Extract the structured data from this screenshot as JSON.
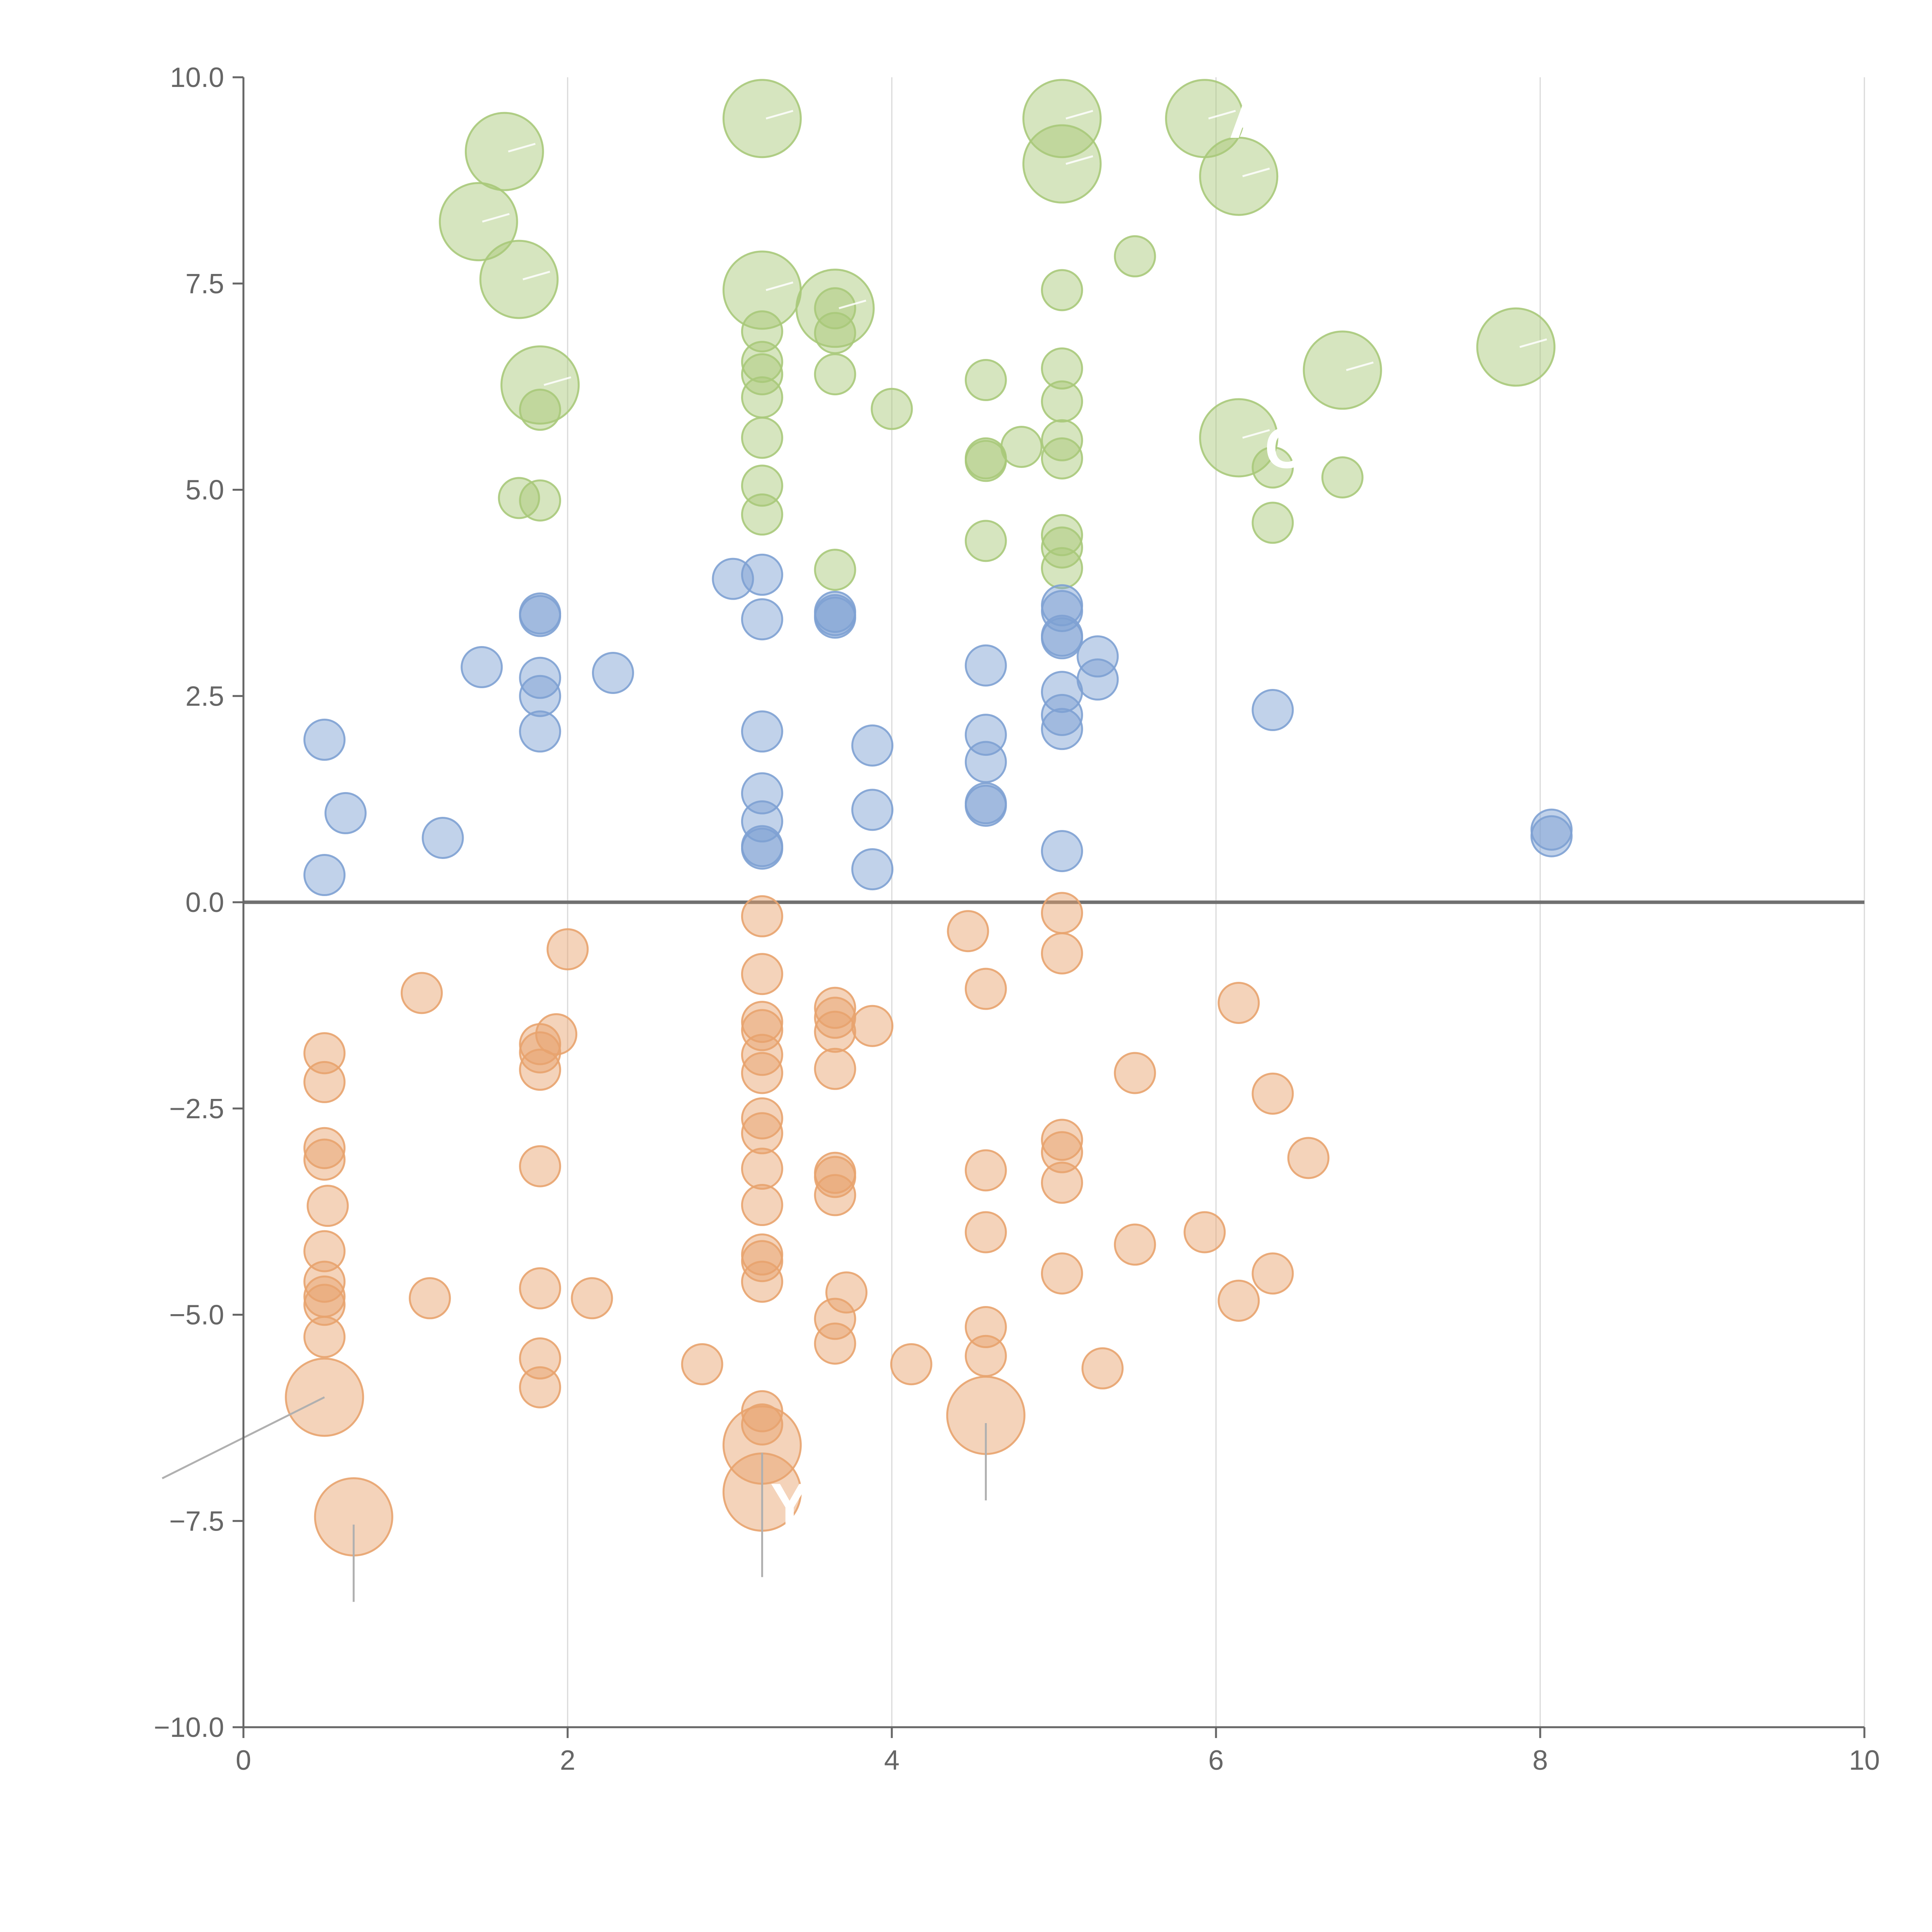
{
  "chart_data": {
    "type": "scatter",
    "title": "",
    "xlabel": "",
    "ylabel": "",
    "xlim": [
      0,
      10
    ],
    "ylim": [
      -10,
      10
    ],
    "x_ticks": [
      "0",
      "2",
      "4",
      "6",
      "8",
      "10"
    ],
    "x_tick_values": [
      0,
      2,
      4,
      6,
      8,
      10
    ],
    "y_ticks": [
      "10.0",
      "7.5",
      "5.0",
      "2.5",
      "0.0",
      "−2.5",
      "−5.0",
      "−7.5",
      "−10.0"
    ],
    "y_tick_values": [
      10,
      7.5,
      5,
      2.5,
      0,
      -2.5,
      -5,
      -7.5,
      -10
    ],
    "grid": "vertical",
    "reference_line_y": 0,
    "series": [
      {
        "name": "green",
        "color": "#a9c97a",
        "points": [
          {
            "x": 1.45,
            "y": 8.25,
            "size": "large"
          },
          {
            "x": 1.61,
            "y": 9.1,
            "size": "large"
          },
          {
            "x": 1.7,
            "y": 7.55,
            "size": "large"
          },
          {
            "x": 1.83,
            "y": 6.27,
            "size": "large"
          },
          {
            "x": 3.2,
            "y": 9.5,
            "size": "large"
          },
          {
            "x": 3.2,
            "y": 7.42,
            "size": "large"
          },
          {
            "x": 3.65,
            "y": 7.2,
            "size": "large"
          },
          {
            "x": 5.05,
            "y": 9.5,
            "size": "large"
          },
          {
            "x": 5.05,
            "y": 8.95,
            "size": "large"
          },
          {
            "x": 5.93,
            "y": 9.5,
            "size": "large"
          },
          {
            "x": 6.14,
            "y": 8.8,
            "size": "large"
          },
          {
            "x": 6.14,
            "y": 5.63,
            "size": "large"
          },
          {
            "x": 6.78,
            "y": 6.45,
            "size": "large"
          },
          {
            "x": 7.85,
            "y": 6.73,
            "size": "large"
          },
          {
            "x": 1.7,
            "y": 4.9,
            "size": "small"
          },
          {
            "x": 1.83,
            "y": 4.87,
            "size": "small"
          },
          {
            "x": 1.83,
            "y": 5.97,
            "size": "small"
          },
          {
            "x": 3.2,
            "y": 6.92,
            "size": "small"
          },
          {
            "x": 3.2,
            "y": 6.55,
            "size": "small"
          },
          {
            "x": 3.2,
            "y": 6.4,
            "size": "small"
          },
          {
            "x": 3.2,
            "y": 6.12,
            "size": "small"
          },
          {
            "x": 3.2,
            "y": 5.63,
            "size": "small"
          },
          {
            "x": 3.2,
            "y": 5.05,
            "size": "small"
          },
          {
            "x": 3.2,
            "y": 4.7,
            "size": "small"
          },
          {
            "x": 3.65,
            "y": 7.2,
            "size": "small"
          },
          {
            "x": 3.65,
            "y": 6.9,
            "size": "small"
          },
          {
            "x": 3.65,
            "y": 6.4,
            "size": "small"
          },
          {
            "x": 3.65,
            "y": 4.03,
            "size": "small"
          },
          {
            "x": 4.0,
            "y": 5.98,
            "size": "small"
          },
          {
            "x": 4.58,
            "y": 6.33,
            "size": "small"
          },
          {
            "x": 4.58,
            "y": 5.38,
            "size": "small"
          },
          {
            "x": 4.58,
            "y": 5.35,
            "size": "small"
          },
          {
            "x": 4.58,
            "y": 4.38,
            "size": "small"
          },
          {
            "x": 4.8,
            "y": 5.52,
            "size": "small"
          },
          {
            "x": 5.05,
            "y": 7.42,
            "size": "small"
          },
          {
            "x": 5.05,
            "y": 6.47,
            "size": "small"
          },
          {
            "x": 5.05,
            "y": 6.07,
            "size": "small"
          },
          {
            "x": 5.05,
            "y": 5.6,
            "size": "small"
          },
          {
            "x": 5.05,
            "y": 5.38,
            "size": "small"
          },
          {
            "x": 5.05,
            "y": 4.45,
            "size": "small"
          },
          {
            "x": 5.05,
            "y": 4.3,
            "size": "small"
          },
          {
            "x": 5.05,
            "y": 4.05,
            "size": "small"
          },
          {
            "x": 5.5,
            "y": 7.83,
            "size": "small"
          },
          {
            "x": 6.35,
            "y": 5.27,
            "size": "small"
          },
          {
            "x": 6.35,
            "y": 4.6,
            "size": "small"
          },
          {
            "x": 6.78,
            "y": 5.15,
            "size": "small"
          }
        ]
      },
      {
        "name": "blue",
        "color": "#7ea1d3",
        "points": [
          {
            "x": 0.5,
            "y": 1.97,
            "size": "small"
          },
          {
            "x": 0.5,
            "y": 0.33,
            "size": "small"
          },
          {
            "x": 0.63,
            "y": 1.08,
            "size": "small"
          },
          {
            "x": 1.23,
            "y": 0.78,
            "size": "small"
          },
          {
            "x": 1.47,
            "y": 2.85,
            "size": "small"
          },
          {
            "x": 1.83,
            "y": 3.5,
            "size": "small"
          },
          {
            "x": 1.83,
            "y": 3.47,
            "size": "small"
          },
          {
            "x": 1.83,
            "y": 2.72,
            "size": "small"
          },
          {
            "x": 1.83,
            "y": 2.5,
            "size": "small"
          },
          {
            "x": 1.83,
            "y": 2.07,
            "size": "small"
          },
          {
            "x": 2.28,
            "y": 2.78,
            "size": "small"
          },
          {
            "x": 3.02,
            "y": 3.92,
            "size": "small"
          },
          {
            "x": 3.2,
            "y": 3.97,
            "size": "small"
          },
          {
            "x": 3.2,
            "y": 3.43,
            "size": "small"
          },
          {
            "x": 3.2,
            "y": 2.07,
            "size": "small"
          },
          {
            "x": 3.2,
            "y": 1.32,
            "size": "small"
          },
          {
            "x": 3.2,
            "y": 0.98,
            "size": "small"
          },
          {
            "x": 3.2,
            "y": 0.68,
            "size": "small"
          },
          {
            "x": 3.2,
            "y": 0.65,
            "size": "small"
          },
          {
            "x": 3.65,
            "y": 3.52,
            "size": "small"
          },
          {
            "x": 3.65,
            "y": 3.48,
            "size": "small"
          },
          {
            "x": 3.65,
            "y": 3.45,
            "size": "small"
          },
          {
            "x": 3.88,
            "y": 1.9,
            "size": "small"
          },
          {
            "x": 3.88,
            "y": 1.12,
            "size": "small"
          },
          {
            "x": 3.88,
            "y": 0.4,
            "size": "small"
          },
          {
            "x": 4.58,
            "y": 2.87,
            "size": "small"
          },
          {
            "x": 4.58,
            "y": 2.03,
            "size": "small"
          },
          {
            "x": 4.58,
            "y": 1.7,
            "size": "small"
          },
          {
            "x": 4.58,
            "y": 1.2,
            "size": "small"
          },
          {
            "x": 4.58,
            "y": 1.17,
            "size": "small"
          },
          {
            "x": 5.05,
            "y": 3.6,
            "size": "small"
          },
          {
            "x": 5.05,
            "y": 3.53,
            "size": "small"
          },
          {
            "x": 5.05,
            "y": 3.23,
            "size": "small"
          },
          {
            "x": 5.05,
            "y": 3.2,
            "size": "small"
          },
          {
            "x": 5.05,
            "y": 2.55,
            "size": "small"
          },
          {
            "x": 5.05,
            "y": 2.27,
            "size": "small"
          },
          {
            "x": 5.05,
            "y": 2.1,
            "size": "small"
          },
          {
            "x": 5.05,
            "y": 0.62,
            "size": "small"
          },
          {
            "x": 5.27,
            "y": 2.98,
            "size": "small"
          },
          {
            "x": 5.27,
            "y": 2.7,
            "size": "small"
          },
          {
            "x": 6.35,
            "y": 2.33,
            "size": "small"
          },
          {
            "x": 8.07,
            "y": 0.88,
            "size": "small"
          },
          {
            "x": 8.07,
            "y": 0.8,
            "size": "small"
          }
        ]
      },
      {
        "name": "orange",
        "color": "#e8a36e",
        "points": [
          {
            "x": 0.5,
            "y": -6.0,
            "size": "large"
          },
          {
            "x": 0.68,
            "y": -7.45,
            "size": "large"
          },
          {
            "x": 3.2,
            "y": -6.58,
            "size": "large"
          },
          {
            "x": 3.2,
            "y": -7.15,
            "size": "large"
          },
          {
            "x": 4.58,
            "y": -6.22,
            "size": "large"
          },
          {
            "x": 0.5,
            "y": -1.83,
            "size": "small"
          },
          {
            "x": 0.5,
            "y": -2.18,
            "size": "small"
          },
          {
            "x": 0.5,
            "y": -2.98,
            "size": "small"
          },
          {
            "x": 0.5,
            "y": -3.12,
            "size": "small"
          },
          {
            "x": 0.52,
            "y": -3.68,
            "size": "small"
          },
          {
            "x": 0.5,
            "y": -4.23,
            "size": "small"
          },
          {
            "x": 0.5,
            "y": -4.6,
            "size": "small"
          },
          {
            "x": 0.5,
            "y": -4.78,
            "size": "small"
          },
          {
            "x": 0.5,
            "y": -4.88,
            "size": "small"
          },
          {
            "x": 0.5,
            "y": -5.27,
            "size": "small"
          },
          {
            "x": 1.1,
            "y": -1.1,
            "size": "small"
          },
          {
            "x": 1.15,
            "y": -4.8,
            "size": "small"
          },
          {
            "x": 1.83,
            "y": -1.72,
            "size": "small"
          },
          {
            "x": 1.83,
            "y": -1.82,
            "size": "small"
          },
          {
            "x": 1.83,
            "y": -2.03,
            "size": "small"
          },
          {
            "x": 1.83,
            "y": -3.2,
            "size": "small"
          },
          {
            "x": 1.83,
            "y": -4.68,
            "size": "small"
          },
          {
            "x": 1.83,
            "y": -5.53,
            "size": "small"
          },
          {
            "x": 1.83,
            "y": -5.88,
            "size": "small"
          },
          {
            "x": 1.93,
            "y": -1.6,
            "size": "small"
          },
          {
            "x": 2.0,
            "y": -0.57,
            "size": "small"
          },
          {
            "x": 2.15,
            "y": -4.8,
            "size": "small"
          },
          {
            "x": 2.83,
            "y": -5.6,
            "size": "small"
          },
          {
            "x": 3.2,
            "y": -0.17,
            "size": "small"
          },
          {
            "x": 3.2,
            "y": -0.87,
            "size": "small"
          },
          {
            "x": 3.2,
            "y": -1.45,
            "size": "small"
          },
          {
            "x": 3.2,
            "y": -1.55,
            "size": "small"
          },
          {
            "x": 3.2,
            "y": -1.85,
            "size": "small"
          },
          {
            "x": 3.2,
            "y": -2.07,
            "size": "small"
          },
          {
            "x": 3.2,
            "y": -2.62,
            "size": "small"
          },
          {
            "x": 3.2,
            "y": -2.8,
            "size": "small"
          },
          {
            "x": 3.2,
            "y": -3.23,
            "size": "small"
          },
          {
            "x": 3.2,
            "y": -3.67,
            "size": "small"
          },
          {
            "x": 3.2,
            "y": -4.27,
            "size": "small"
          },
          {
            "x": 3.2,
            "y": -4.35,
            "size": "small"
          },
          {
            "x": 3.2,
            "y": -4.6,
            "size": "small"
          },
          {
            "x": 3.2,
            "y": -6.17,
            "size": "small"
          },
          {
            "x": 3.2,
            "y": -6.33,
            "size": "small"
          },
          {
            "x": 3.65,
            "y": -1.28,
            "size": "small"
          },
          {
            "x": 3.65,
            "y": -1.4,
            "size": "small"
          },
          {
            "x": 3.65,
            "y": -1.57,
            "size": "small"
          },
          {
            "x": 3.65,
            "y": -2.02,
            "size": "small"
          },
          {
            "x": 3.65,
            "y": -3.28,
            "size": "small"
          },
          {
            "x": 3.65,
            "y": -3.33,
            "size": "small"
          },
          {
            "x": 3.65,
            "y": -3.55,
            "size": "small"
          },
          {
            "x": 3.65,
            "y": -5.05,
            "size": "small"
          },
          {
            "x": 3.65,
            "y": -5.35,
            "size": "small"
          },
          {
            "x": 3.72,
            "y": -4.73,
            "size": "small"
          },
          {
            "x": 3.88,
            "y": -1.5,
            "size": "small"
          },
          {
            "x": 4.12,
            "y": -5.6,
            "size": "small"
          },
          {
            "x": 4.47,
            "y": -0.35,
            "size": "small"
          },
          {
            "x": 4.58,
            "y": -1.05,
            "size": "small"
          },
          {
            "x": 4.58,
            "y": -3.25,
            "size": "small"
          },
          {
            "x": 4.58,
            "y": -4.0,
            "size": "small"
          },
          {
            "x": 4.58,
            "y": -5.15,
            "size": "small"
          },
          {
            "x": 4.58,
            "y": -5.5,
            "size": "small"
          },
          {
            "x": 5.05,
            "y": -0.13,
            "size": "small"
          },
          {
            "x": 5.05,
            "y": -0.62,
            "size": "small"
          },
          {
            "x": 5.05,
            "y": -2.88,
            "size": "small"
          },
          {
            "x": 5.05,
            "y": -3.03,
            "size": "small"
          },
          {
            "x": 5.05,
            "y": -3.4,
            "size": "small"
          },
          {
            "x": 5.05,
            "y": -4.5,
            "size": "small"
          },
          {
            "x": 5.3,
            "y": -5.65,
            "size": "small"
          },
          {
            "x": 5.5,
            "y": -2.07,
            "size": "small"
          },
          {
            "x": 5.5,
            "y": -4.15,
            "size": "small"
          },
          {
            "x": 5.93,
            "y": -4.0,
            "size": "small"
          },
          {
            "x": 6.14,
            "y": -1.22,
            "size": "small"
          },
          {
            "x": 6.14,
            "y": -4.83,
            "size": "small"
          },
          {
            "x": 6.35,
            "y": -2.32,
            "size": "small"
          },
          {
            "x": 6.35,
            "y": -4.5,
            "size": "small"
          },
          {
            "x": 6.57,
            "y": -3.1,
            "size": "small"
          }
        ]
      }
    ],
    "annotations": [
      {
        "text": "Y",
        "x": 3.25,
        "y": -7.3,
        "series": "orange"
      },
      {
        "text": "C",
        "x": 6.3,
        "y": 5.5,
        "series": "green"
      },
      {
        "text": "A",
        "x": 6.08,
        "y": 9.5,
        "series": "green"
      }
    ]
  }
}
